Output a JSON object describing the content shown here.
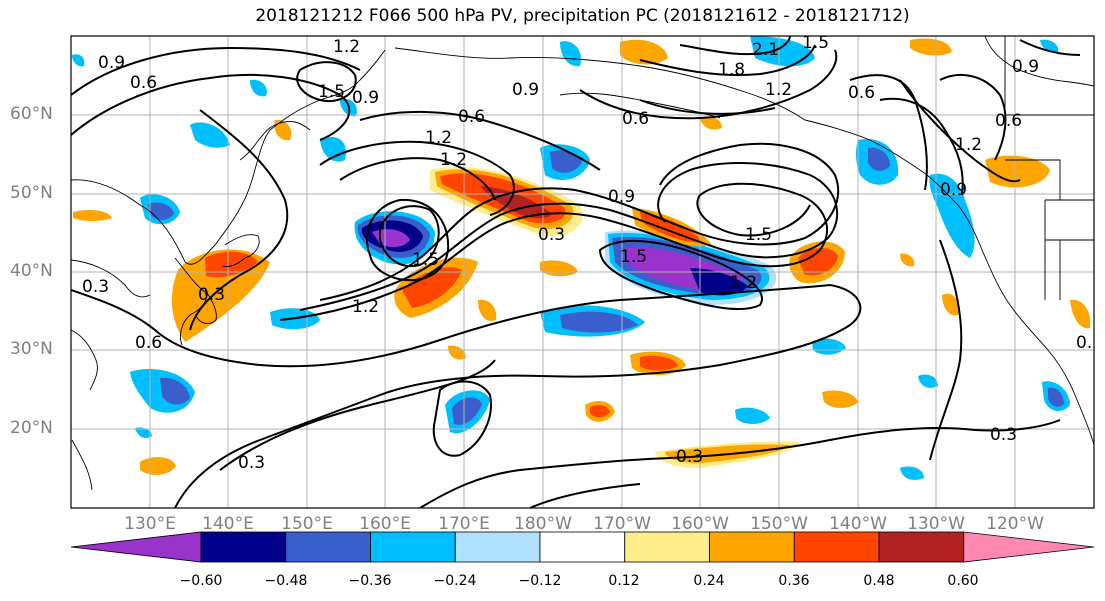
{
  "title": "2018121212 F066 500 hPa PV, precipitation PC (2018121612 - 2018121712)",
  "lat_labels": [
    "60°N",
    "50°N",
    "40°N",
    "30°N",
    "20°N"
  ],
  "lon_labels": [
    "130°E",
    "140°E",
    "150°E",
    "160°E",
    "170°E",
    "180°W",
    "170°W",
    "160°W",
    "150°W",
    "140°W",
    "130°W",
    "120°W"
  ],
  "colorbar": {
    "ticks": [
      "−0.60",
      "−0.48",
      "−0.36",
      "−0.24",
      "−0.12",
      "0.12",
      "0.24",
      "0.36",
      "0.48",
      "0.60"
    ],
    "colors": [
      "#9933cc",
      "#00008b",
      "#3a5fcd",
      "#00bfff",
      "#b0e2ff",
      "#ffffff",
      "#ffec8b",
      "#ffa500",
      "#ff4500",
      "#b22222",
      "#ff88b0"
    ]
  },
  "contour_labels": [
    "0.9",
    "0.6",
    "1.2",
    "1.5",
    "0.9",
    "0.6",
    "1.8",
    "2.1",
    "1.5",
    "1.2",
    "0.6",
    "0.9",
    "0.6",
    "0.9",
    "1.2",
    "0.6",
    "1.2",
    "1.2",
    "0.9",
    "0.3",
    "1.5",
    "1.5",
    "1.2",
    "1.2",
    "1.5",
    "0.9",
    "0.6",
    "0.3",
    "0.3",
    "0.3",
    "0.3",
    "0.6",
    "0.3"
  ]
}
